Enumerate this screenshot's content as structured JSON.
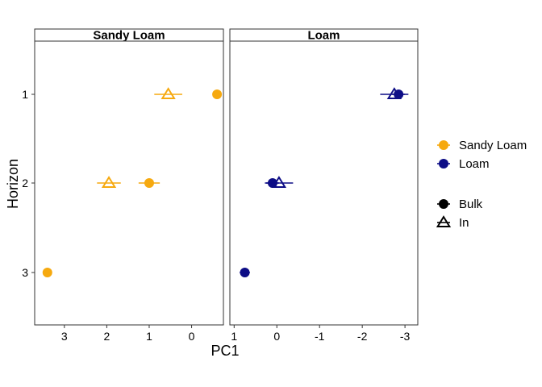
{
  "chart_data": {
    "type": "scatter",
    "title": "",
    "xlabel": "PC1",
    "ylabel": "Horizon",
    "x_reversed": true,
    "y_categories": [
      "1",
      "2",
      "3"
    ],
    "facets": [
      {
        "label": "Sandy Loam",
        "xlim": [
          3.7,
          -0.75
        ],
        "xticks": [
          3,
          2,
          1,
          0
        ],
        "xtick_labels": [
          "3",
          "2",
          "1",
          "0"
        ]
      },
      {
        "label": "Loam",
        "xlim": [
          1.1,
          -3.3
        ],
        "xticks": [
          1,
          0,
          -1,
          -2,
          -3
        ],
        "xtick_labels": [
          "1",
          "0",
          "-1",
          "-2",
          "-3"
        ]
      }
    ],
    "series": [
      {
        "facet": "Sandy Loam",
        "texture": "Sandy Loam",
        "type": "Bulk",
        "shape": "circle",
        "points": [
          {
            "horizon": "1",
            "x": -0.6,
            "err": 0.0
          },
          {
            "horizon": "2",
            "x": 1.0,
            "err": 0.25
          },
          {
            "horizon": "3",
            "x": 3.4,
            "err": 0.0
          }
        ]
      },
      {
        "facet": "Sandy Loam",
        "texture": "Sandy Loam",
        "type": "In",
        "shape": "triangle",
        "points": [
          {
            "horizon": "1",
            "x": 0.55,
            "err": 0.33
          },
          {
            "horizon": "2",
            "x": 1.95,
            "err": 0.28
          }
        ]
      },
      {
        "facet": "Loam",
        "texture": "Loam",
        "type": "Bulk",
        "shape": "circle",
        "points": [
          {
            "horizon": "1",
            "x": -2.85,
            "err": 0.15
          },
          {
            "horizon": "2",
            "x": 0.1,
            "err": 0.15
          },
          {
            "horizon": "3",
            "x": 0.75,
            "err": 0.12
          }
        ]
      },
      {
        "facet": "Loam",
        "texture": "Loam",
        "type": "In",
        "shape": "triangle",
        "points": [
          {
            "horizon": "1",
            "x": -2.75,
            "err": 0.33
          },
          {
            "horizon": "2",
            "x": -0.05,
            "err": 0.33
          }
        ]
      }
    ],
    "colors": {
      "Sandy Loam": "#F6A90F",
      "Loam": "#0D0D86"
    },
    "legend": {
      "placement": "right",
      "color_entries": [
        {
          "label": "Sandy Loam",
          "color": "#F6A90F"
        },
        {
          "label": "Loam",
          "color": "#0D0D86"
        }
      ],
      "shape_entries": [
        {
          "label": "Bulk",
          "shape": "circle"
        },
        {
          "label": "In",
          "shape": "triangle"
        }
      ]
    },
    "grid": false
  }
}
